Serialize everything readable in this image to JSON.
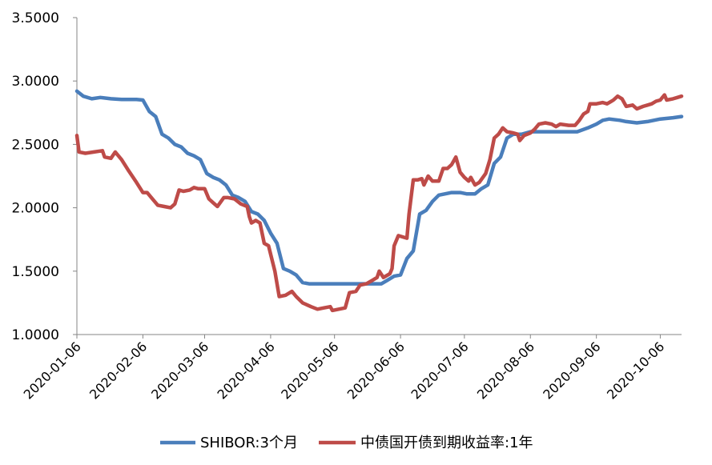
{
  "chart_data": {
    "type": "line",
    "title": "",
    "xlabel": "",
    "ylabel": "",
    "ylim": [
      1.0,
      3.5
    ],
    "yticks": [
      "1.0000",
      "1.5000",
      "2.0000",
      "2.5000",
      "3.0000",
      "3.5000"
    ],
    "ytick_values": [
      1.0,
      1.5,
      2.0,
      2.5,
      3.0,
      3.5
    ],
    "xticks": [
      "2020-01-06",
      "2020-02-06",
      "2020-03-06",
      "2020-04-06",
      "2020-05-06",
      "2020-06-06",
      "2020-07-06",
      "2020-08-06",
      "2020-09-06",
      "2020-10-06"
    ],
    "xlim": [
      "2020-01-06",
      "2020-10-16"
    ],
    "grid": false,
    "legend_position": "bottom",
    "series": [
      {
        "name": "SHIBOR:3个月",
        "color": "#4a7ebb",
        "points": [
          [
            "2020-01-06",
            2.92
          ],
          [
            "2020-01-09",
            2.88
          ],
          [
            "2020-01-13",
            2.86
          ],
          [
            "2020-01-17",
            2.87
          ],
          [
            "2020-01-22",
            2.86
          ],
          [
            "2020-01-27",
            2.855
          ],
          [
            "2020-02-03",
            2.855
          ],
          [
            "2020-02-06",
            2.85
          ],
          [
            "2020-02-09",
            2.76
          ],
          [
            "2020-02-12",
            2.72
          ],
          [
            "2020-02-15",
            2.58
          ],
          [
            "2020-02-18",
            2.55
          ],
          [
            "2020-02-21",
            2.5
          ],
          [
            "2020-02-24",
            2.48
          ],
          [
            "2020-02-27",
            2.43
          ],
          [
            "2020-03-01",
            2.41
          ],
          [
            "2020-03-04",
            2.38
          ],
          [
            "2020-03-07",
            2.27
          ],
          [
            "2020-03-10",
            2.24
          ],
          [
            "2020-03-13",
            2.22
          ],
          [
            "2020-03-16",
            2.18
          ],
          [
            "2020-03-19",
            2.1
          ],
          [
            "2020-03-22",
            2.08
          ],
          [
            "2020-03-25",
            2.05
          ],
          [
            "2020-03-28",
            1.97
          ],
          [
            "2020-03-31",
            1.95
          ],
          [
            "2020-04-03",
            1.9
          ],
          [
            "2020-04-06",
            1.8
          ],
          [
            "2020-04-09",
            1.72
          ],
          [
            "2020-04-12",
            1.52
          ],
          [
            "2020-04-15",
            1.5
          ],
          [
            "2020-04-18",
            1.47
          ],
          [
            "2020-04-21",
            1.41
          ],
          [
            "2020-04-24",
            1.4
          ],
          [
            "2020-05-01",
            1.4
          ],
          [
            "2020-05-10",
            1.4
          ],
          [
            "2020-05-20",
            1.4
          ],
          [
            "2020-05-28",
            1.4
          ],
          [
            "2020-05-31",
            1.43
          ],
          [
            "2020-06-03",
            1.46
          ],
          [
            "2020-06-06",
            1.47
          ],
          [
            "2020-06-09",
            1.6
          ],
          [
            "2020-06-12",
            1.66
          ],
          [
            "2020-06-15",
            1.95
          ],
          [
            "2020-06-18",
            1.98
          ],
          [
            "2020-06-21",
            2.05
          ],
          [
            "2020-06-24",
            2.1
          ],
          [
            "2020-06-27",
            2.11
          ],
          [
            "2020-06-30",
            2.12
          ],
          [
            "2020-07-04",
            2.12
          ],
          [
            "2020-07-07",
            2.11
          ],
          [
            "2020-07-11",
            2.11
          ],
          [
            "2020-07-14",
            2.15
          ],
          [
            "2020-07-17",
            2.18
          ],
          [
            "2020-07-20",
            2.35
          ],
          [
            "2020-07-23",
            2.4
          ],
          [
            "2020-07-26",
            2.55
          ],
          [
            "2020-07-29",
            2.58
          ],
          [
            "2020-08-02",
            2.58
          ],
          [
            "2020-08-06",
            2.6
          ],
          [
            "2020-08-12",
            2.6
          ],
          [
            "2020-08-20",
            2.6
          ],
          [
            "2020-08-28",
            2.6
          ],
          [
            "2020-09-02",
            2.63
          ],
          [
            "2020-09-06",
            2.66
          ],
          [
            "2020-09-09",
            2.69
          ],
          [
            "2020-09-12",
            2.7
          ],
          [
            "2020-09-17",
            2.69
          ],
          [
            "2020-09-20",
            2.68
          ],
          [
            "2020-09-25",
            2.67
          ],
          [
            "2020-09-30",
            2.68
          ],
          [
            "2020-10-06",
            2.7
          ],
          [
            "2020-10-12",
            2.71
          ],
          [
            "2020-10-16",
            2.72
          ]
        ]
      },
      {
        "name": "中债国开债到期收益率:1年",
        "color": "#be4b48",
        "points": [
          [
            "2020-01-06",
            2.57
          ],
          [
            "2020-01-07",
            2.44
          ],
          [
            "2020-01-10",
            2.43
          ],
          [
            "2020-01-14",
            2.44
          ],
          [
            "2020-01-18",
            2.45
          ],
          [
            "2020-01-19",
            2.4
          ],
          [
            "2020-01-22",
            2.39
          ],
          [
            "2020-01-24",
            2.44
          ],
          [
            "2020-01-27",
            2.38
          ],
          [
            "2020-01-30",
            2.3
          ],
          [
            "2020-02-03",
            2.2
          ],
          [
            "2020-02-06",
            2.12
          ],
          [
            "2020-02-08",
            2.12
          ],
          [
            "2020-02-10",
            2.08
          ],
          [
            "2020-02-13",
            2.02
          ],
          [
            "2020-02-16",
            2.01
          ],
          [
            "2020-02-19",
            2.0
          ],
          [
            "2020-02-21",
            2.03
          ],
          [
            "2020-02-23",
            2.14
          ],
          [
            "2020-02-25",
            2.13
          ],
          [
            "2020-02-28",
            2.14
          ],
          [
            "2020-03-01",
            2.16
          ],
          [
            "2020-03-03",
            2.15
          ],
          [
            "2020-03-06",
            2.15
          ],
          [
            "2020-03-08",
            2.07
          ],
          [
            "2020-03-10",
            2.04
          ],
          [
            "2020-03-12",
            2.01
          ],
          [
            "2020-03-15",
            2.08
          ],
          [
            "2020-03-17",
            2.08
          ],
          [
            "2020-03-20",
            2.07
          ],
          [
            "2020-03-23",
            2.03
          ],
          [
            "2020-03-26",
            2.01
          ],
          [
            "2020-03-27",
            1.93
          ],
          [
            "2020-03-28",
            1.88
          ],
          [
            "2020-03-30",
            1.9
          ],
          [
            "2020-04-01",
            1.88
          ],
          [
            "2020-04-03",
            1.72
          ],
          [
            "2020-04-05",
            1.7
          ],
          [
            "2020-04-08",
            1.5
          ],
          [
            "2020-04-10",
            1.3
          ],
          [
            "2020-04-13",
            1.31
          ],
          [
            "2020-04-16",
            1.34
          ],
          [
            "2020-04-18",
            1.3
          ],
          [
            "2020-04-21",
            1.25
          ],
          [
            "2020-04-25",
            1.22
          ],
          [
            "2020-04-28",
            1.2
          ],
          [
            "2020-05-01",
            1.21
          ],
          [
            "2020-05-04",
            1.22
          ],
          [
            "2020-05-05",
            1.19
          ],
          [
            "2020-05-08",
            1.2
          ],
          [
            "2020-05-11",
            1.21
          ],
          [
            "2020-05-13",
            1.33
          ],
          [
            "2020-05-16",
            1.34
          ],
          [
            "2020-05-18",
            1.39
          ],
          [
            "2020-05-21",
            1.4
          ],
          [
            "2020-05-24",
            1.43
          ],
          [
            "2020-05-26",
            1.45
          ],
          [
            "2020-05-27",
            1.5
          ],
          [
            "2020-05-29",
            1.45
          ],
          [
            "2020-06-01",
            1.48
          ],
          [
            "2020-06-02",
            1.52
          ],
          [
            "2020-06-03",
            1.7
          ],
          [
            "2020-06-05",
            1.78
          ],
          [
            "2020-06-07",
            1.77
          ],
          [
            "2020-06-09",
            1.76
          ],
          [
            "2020-06-10",
            1.95
          ],
          [
            "2020-06-12",
            2.22
          ],
          [
            "2020-06-14",
            2.22
          ],
          [
            "2020-06-16",
            2.23
          ],
          [
            "2020-06-17",
            2.18
          ],
          [
            "2020-06-19",
            2.25
          ],
          [
            "2020-06-21",
            2.21
          ],
          [
            "2020-06-24",
            2.21
          ],
          [
            "2020-06-26",
            2.31
          ],
          [
            "2020-06-28",
            2.31
          ],
          [
            "2020-06-30",
            2.34
          ],
          [
            "2020-07-02",
            2.4
          ],
          [
            "2020-07-04",
            2.28
          ],
          [
            "2020-07-06",
            2.24
          ],
          [
            "2020-07-08",
            2.21
          ],
          [
            "2020-07-09",
            2.24
          ],
          [
            "2020-07-11",
            2.18
          ],
          [
            "2020-07-13",
            2.2
          ],
          [
            "2020-07-16",
            2.27
          ],
          [
            "2020-07-18",
            2.38
          ],
          [
            "2020-07-20",
            2.55
          ],
          [
            "2020-07-22",
            2.58
          ],
          [
            "2020-07-24",
            2.63
          ],
          [
            "2020-07-26",
            2.6
          ],
          [
            "2020-07-29",
            2.59
          ],
          [
            "2020-07-31",
            2.58
          ],
          [
            "2020-08-01",
            2.53
          ],
          [
            "2020-08-03",
            2.57
          ],
          [
            "2020-08-06",
            2.59
          ],
          [
            "2020-08-08",
            2.62
          ],
          [
            "2020-08-10",
            2.66
          ],
          [
            "2020-08-13",
            2.67
          ],
          [
            "2020-08-16",
            2.66
          ],
          [
            "2020-08-18",
            2.64
          ],
          [
            "2020-08-20",
            2.66
          ],
          [
            "2020-08-24",
            2.65
          ],
          [
            "2020-08-27",
            2.65
          ],
          [
            "2020-08-29",
            2.69
          ],
          [
            "2020-08-31",
            2.74
          ],
          [
            "2020-09-02",
            2.76
          ],
          [
            "2020-09-03",
            2.82
          ],
          [
            "2020-09-06",
            2.82
          ],
          [
            "2020-09-09",
            2.83
          ],
          [
            "2020-09-11",
            2.82
          ],
          [
            "2020-09-14",
            2.85
          ],
          [
            "2020-09-16",
            2.88
          ],
          [
            "2020-09-18",
            2.86
          ],
          [
            "2020-09-20",
            2.8
          ],
          [
            "2020-09-23",
            2.81
          ],
          [
            "2020-09-25",
            2.78
          ],
          [
            "2020-09-28",
            2.8
          ],
          [
            "2020-09-30",
            2.81
          ],
          [
            "2020-10-02",
            2.82
          ],
          [
            "2020-10-04",
            2.84
          ],
          [
            "2020-10-06",
            2.85
          ],
          [
            "2020-10-08",
            2.89
          ],
          [
            "2020-10-09",
            2.85
          ],
          [
            "2020-10-12",
            2.86
          ],
          [
            "2020-10-14",
            2.87
          ],
          [
            "2020-10-16",
            2.88
          ]
        ]
      }
    ]
  }
}
